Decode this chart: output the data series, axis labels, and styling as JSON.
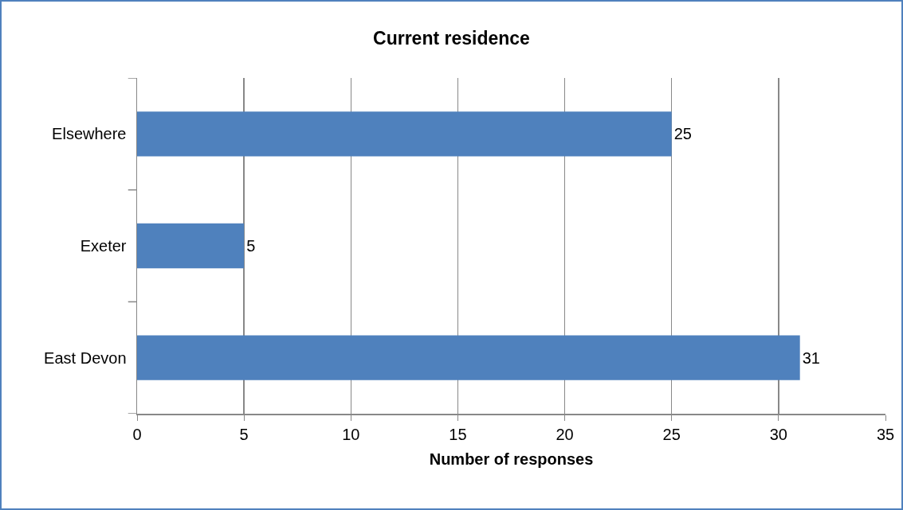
{
  "chart_data": {
    "type": "bar",
    "orientation": "horizontal",
    "title": "Current residence",
    "xlabel": "Number of responses",
    "categories": [
      "Elsewhere",
      "Exeter",
      "East Devon"
    ],
    "values": [
      25,
      5,
      31
    ],
    "color": "#4f81bd",
    "xlim": [
      0,
      35
    ],
    "xticks": [
      0,
      5,
      10,
      15,
      20,
      25,
      30,
      35
    ],
    "grid": "x",
    "data_labels": true
  }
}
